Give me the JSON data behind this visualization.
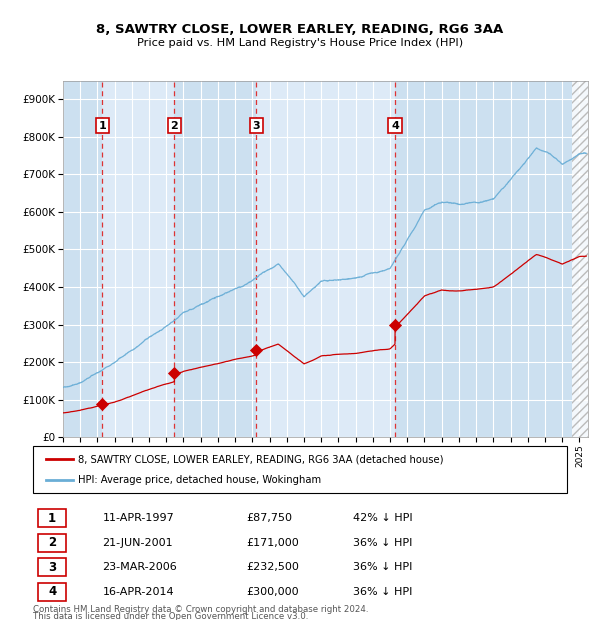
{
  "title": "8, SAWTRY CLOSE, LOWER EARLEY, READING, RG6 3AA",
  "subtitle": "Price paid vs. HM Land Registry's House Price Index (HPI)",
  "legend_line1": "8, SAWTRY CLOSE, LOWER EARLEY, READING, RG6 3AA (detached house)",
  "legend_line2": "HPI: Average price, detached house, Wokingham",
  "footer_line1": "Contains HM Land Registry data © Crown copyright and database right 2024.",
  "footer_line2": "This data is licensed under the Open Government Licence v3.0.",
  "sales": [
    {
      "num": 1,
      "date_label": "11-APR-1997",
      "year": 1997.28,
      "price": 87750,
      "pct": "42% ↓ HPI"
    },
    {
      "num": 2,
      "date_label": "21-JUN-2001",
      "year": 2001.47,
      "price": 171000,
      "pct": "36% ↓ HPI"
    },
    {
      "num": 3,
      "date_label": "23-MAR-2006",
      "year": 2006.22,
      "price": 232500,
      "pct": "36% ↓ HPI"
    },
    {
      "num": 4,
      "date_label": "16-APR-2014",
      "year": 2014.29,
      "price": 300000,
      "pct": "36% ↓ HPI"
    }
  ],
  "hpi_color": "#6aaed6",
  "price_color": "#cc0000",
  "sale_dot_color": "#cc0000",
  "background_color": "#ddeaf7",
  "grid_color": "#ffffff",
  "dashed_line_color": "#dd3333",
  "band_colors": [
    "#cce0f0",
    "#ddeaf7",
    "#cce0f0",
    "#ddeaf7",
    "#cce0f0"
  ],
  "ylim": [
    0,
    950000
  ],
  "xlim_start": 1995.0,
  "xlim_end": 2025.5,
  "hatch_start": 2024.58
}
